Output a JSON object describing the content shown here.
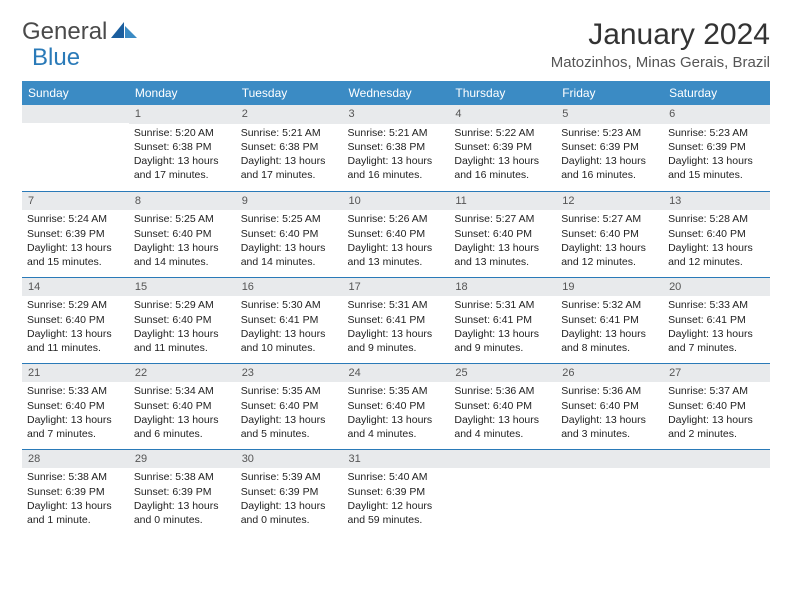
{
  "logo": {
    "part1": "General",
    "part2": "Blue"
  },
  "title": "January 2024",
  "location": "Matozinhos, Minas Gerais, Brazil",
  "colors": {
    "header_bg": "#3b8bc4",
    "header_text": "#ffffff",
    "daynum_bg": "#e8eaec",
    "border": "#2a7ab8",
    "logo_blue": "#2a7ab8",
    "logo_gray": "#4a4a4a"
  },
  "weekdays": [
    "Sunday",
    "Monday",
    "Tuesday",
    "Wednesday",
    "Thursday",
    "Friday",
    "Saturday"
  ],
  "weeks": [
    [
      {
        "num": "",
        "sunrise": "",
        "sunset": "",
        "daylight": ""
      },
      {
        "num": "1",
        "sunrise": "Sunrise: 5:20 AM",
        "sunset": "Sunset: 6:38 PM",
        "daylight": "Daylight: 13 hours and 17 minutes."
      },
      {
        "num": "2",
        "sunrise": "Sunrise: 5:21 AM",
        "sunset": "Sunset: 6:38 PM",
        "daylight": "Daylight: 13 hours and 17 minutes."
      },
      {
        "num": "3",
        "sunrise": "Sunrise: 5:21 AM",
        "sunset": "Sunset: 6:38 PM",
        "daylight": "Daylight: 13 hours and 16 minutes."
      },
      {
        "num": "4",
        "sunrise": "Sunrise: 5:22 AM",
        "sunset": "Sunset: 6:39 PM",
        "daylight": "Daylight: 13 hours and 16 minutes."
      },
      {
        "num": "5",
        "sunrise": "Sunrise: 5:23 AM",
        "sunset": "Sunset: 6:39 PM",
        "daylight": "Daylight: 13 hours and 16 minutes."
      },
      {
        "num": "6",
        "sunrise": "Sunrise: 5:23 AM",
        "sunset": "Sunset: 6:39 PM",
        "daylight": "Daylight: 13 hours and 15 minutes."
      }
    ],
    [
      {
        "num": "7",
        "sunrise": "Sunrise: 5:24 AM",
        "sunset": "Sunset: 6:39 PM",
        "daylight": "Daylight: 13 hours and 15 minutes."
      },
      {
        "num": "8",
        "sunrise": "Sunrise: 5:25 AM",
        "sunset": "Sunset: 6:40 PM",
        "daylight": "Daylight: 13 hours and 14 minutes."
      },
      {
        "num": "9",
        "sunrise": "Sunrise: 5:25 AM",
        "sunset": "Sunset: 6:40 PM",
        "daylight": "Daylight: 13 hours and 14 minutes."
      },
      {
        "num": "10",
        "sunrise": "Sunrise: 5:26 AM",
        "sunset": "Sunset: 6:40 PM",
        "daylight": "Daylight: 13 hours and 13 minutes."
      },
      {
        "num": "11",
        "sunrise": "Sunrise: 5:27 AM",
        "sunset": "Sunset: 6:40 PM",
        "daylight": "Daylight: 13 hours and 13 minutes."
      },
      {
        "num": "12",
        "sunrise": "Sunrise: 5:27 AM",
        "sunset": "Sunset: 6:40 PM",
        "daylight": "Daylight: 13 hours and 12 minutes."
      },
      {
        "num": "13",
        "sunrise": "Sunrise: 5:28 AM",
        "sunset": "Sunset: 6:40 PM",
        "daylight": "Daylight: 13 hours and 12 minutes."
      }
    ],
    [
      {
        "num": "14",
        "sunrise": "Sunrise: 5:29 AM",
        "sunset": "Sunset: 6:40 PM",
        "daylight": "Daylight: 13 hours and 11 minutes."
      },
      {
        "num": "15",
        "sunrise": "Sunrise: 5:29 AM",
        "sunset": "Sunset: 6:40 PM",
        "daylight": "Daylight: 13 hours and 11 minutes."
      },
      {
        "num": "16",
        "sunrise": "Sunrise: 5:30 AM",
        "sunset": "Sunset: 6:41 PM",
        "daylight": "Daylight: 13 hours and 10 minutes."
      },
      {
        "num": "17",
        "sunrise": "Sunrise: 5:31 AM",
        "sunset": "Sunset: 6:41 PM",
        "daylight": "Daylight: 13 hours and 9 minutes."
      },
      {
        "num": "18",
        "sunrise": "Sunrise: 5:31 AM",
        "sunset": "Sunset: 6:41 PM",
        "daylight": "Daylight: 13 hours and 9 minutes."
      },
      {
        "num": "19",
        "sunrise": "Sunrise: 5:32 AM",
        "sunset": "Sunset: 6:41 PM",
        "daylight": "Daylight: 13 hours and 8 minutes."
      },
      {
        "num": "20",
        "sunrise": "Sunrise: 5:33 AM",
        "sunset": "Sunset: 6:41 PM",
        "daylight": "Daylight: 13 hours and 7 minutes."
      }
    ],
    [
      {
        "num": "21",
        "sunrise": "Sunrise: 5:33 AM",
        "sunset": "Sunset: 6:40 PM",
        "daylight": "Daylight: 13 hours and 7 minutes."
      },
      {
        "num": "22",
        "sunrise": "Sunrise: 5:34 AM",
        "sunset": "Sunset: 6:40 PM",
        "daylight": "Daylight: 13 hours and 6 minutes."
      },
      {
        "num": "23",
        "sunrise": "Sunrise: 5:35 AM",
        "sunset": "Sunset: 6:40 PM",
        "daylight": "Daylight: 13 hours and 5 minutes."
      },
      {
        "num": "24",
        "sunrise": "Sunrise: 5:35 AM",
        "sunset": "Sunset: 6:40 PM",
        "daylight": "Daylight: 13 hours and 4 minutes."
      },
      {
        "num": "25",
        "sunrise": "Sunrise: 5:36 AM",
        "sunset": "Sunset: 6:40 PM",
        "daylight": "Daylight: 13 hours and 4 minutes."
      },
      {
        "num": "26",
        "sunrise": "Sunrise: 5:36 AM",
        "sunset": "Sunset: 6:40 PM",
        "daylight": "Daylight: 13 hours and 3 minutes."
      },
      {
        "num": "27",
        "sunrise": "Sunrise: 5:37 AM",
        "sunset": "Sunset: 6:40 PM",
        "daylight": "Daylight: 13 hours and 2 minutes."
      }
    ],
    [
      {
        "num": "28",
        "sunrise": "Sunrise: 5:38 AM",
        "sunset": "Sunset: 6:39 PM",
        "daylight": "Daylight: 13 hours and 1 minute."
      },
      {
        "num": "29",
        "sunrise": "Sunrise: 5:38 AM",
        "sunset": "Sunset: 6:39 PM",
        "daylight": "Daylight: 13 hours and 0 minutes."
      },
      {
        "num": "30",
        "sunrise": "Sunrise: 5:39 AM",
        "sunset": "Sunset: 6:39 PM",
        "daylight": "Daylight: 13 hours and 0 minutes."
      },
      {
        "num": "31",
        "sunrise": "Sunrise: 5:40 AM",
        "sunset": "Sunset: 6:39 PM",
        "daylight": "Daylight: 12 hours and 59 minutes."
      },
      {
        "num": "",
        "sunrise": "",
        "sunset": "",
        "daylight": ""
      },
      {
        "num": "",
        "sunrise": "",
        "sunset": "",
        "daylight": ""
      },
      {
        "num": "",
        "sunrise": "",
        "sunset": "",
        "daylight": ""
      }
    ]
  ]
}
